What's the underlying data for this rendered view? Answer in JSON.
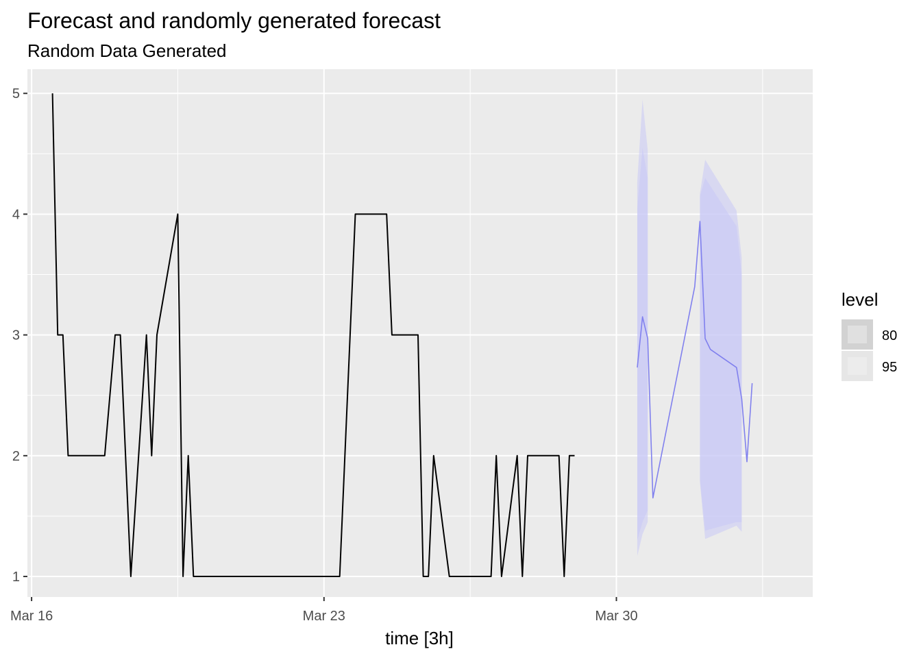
{
  "chart_data": {
    "type": "line",
    "title": "Forecast and randomly generated forecast",
    "subtitle": "Random Data Generated",
    "xlabel": "time [3h]",
    "ylabel": "",
    "x_ticks": [
      "Mar 16",
      "Mar 23",
      "Mar 30"
    ],
    "y_ticks": [
      1,
      2,
      3,
      4,
      5
    ],
    "xlim_days": [
      15.9,
      34.7
    ],
    "ylim": [
      0.83,
      5.2
    ],
    "grid": true,
    "legend": {
      "title": "level",
      "entries": [
        "80",
        "95"
      ],
      "placement": "right"
    },
    "colors": {
      "panel": "#ebebeb",
      "grid": "#ffffff",
      "history": "#000000",
      "forecast": "#8080ee",
      "band": "#c8c8f5"
    },
    "series": [
      {
        "role": "history",
        "points": [
          [
            "Mar 16 12:00",
            5
          ],
          [
            "Mar 16 15:00",
            3
          ],
          [
            "Mar 16 18:00",
            3
          ],
          [
            "Mar 16 21:00",
            2
          ],
          [
            "Mar 17 00:00",
            2
          ],
          [
            "Mar 17 03:00",
            2
          ],
          [
            "Mar 17 06:00",
            2
          ],
          [
            "Mar 17 09:00",
            2
          ],
          [
            "Mar 17 12:00",
            2
          ],
          [
            "Mar 17 15:00",
            2
          ],
          [
            "Mar 17 18:00",
            2
          ],
          [
            "Mar 17 21:00",
            2.5
          ],
          [
            "Mar 18 00:00",
            3
          ],
          [
            "Mar 18 03:00",
            3
          ],
          [
            "Mar 18 06:00",
            2
          ],
          [
            "Mar 18 09:00",
            1
          ],
          [
            "Mar 18 12:00",
            1.67
          ],
          [
            "Mar 18 15:00",
            2.33
          ],
          [
            "Mar 18 18:00",
            3
          ],
          [
            "Mar 18 21:00",
            2
          ],
          [
            "Mar 19 00:00",
            3
          ],
          [
            "Mar 19 03:00",
            3.25
          ],
          [
            "Mar 19 06:00",
            3.5
          ],
          [
            "Mar 19 09:00",
            3.75
          ],
          [
            "Mar 19 12:00",
            4
          ],
          [
            "Mar 19 15:00",
            1
          ],
          [
            "Mar 19 18:00",
            2
          ],
          [
            "Mar 19 21:00",
            1
          ],
          [
            "Mar 20 00:00",
            1
          ],
          [
            "Mar 20 03:00",
            1
          ],
          [
            "Mar 20 06:00",
            1
          ],
          [
            "Mar 20 09:00",
            1
          ],
          [
            "Mar 20 12:00",
            1
          ],
          [
            "Mar 20 15:00",
            1
          ],
          [
            "Mar 20 18:00",
            1
          ],
          [
            "Mar 20 21:00",
            1
          ],
          [
            "Mar 21 00:00",
            1
          ],
          [
            "Mar 21 03:00",
            1
          ],
          [
            "Mar 21 06:00",
            1
          ],
          [
            "Mar 21 09:00",
            1
          ],
          [
            "Mar 21 12:00",
            1
          ],
          [
            "Mar 21 15:00",
            1
          ],
          [
            "Mar 21 18:00",
            1
          ],
          [
            "Mar 21 21:00",
            1
          ],
          [
            "Mar 22 00:00",
            1
          ],
          [
            "Mar 22 03:00",
            1
          ],
          [
            "Mar 22 06:00",
            1
          ],
          [
            "Mar 22 09:00",
            1
          ],
          [
            "Mar 22 12:00",
            1
          ],
          [
            "Mar 22 15:00",
            1
          ],
          [
            "Mar 22 18:00",
            1
          ],
          [
            "Mar 22 21:00",
            1
          ],
          [
            "Mar 23 00:00",
            1
          ],
          [
            "Mar 23 03:00",
            1
          ],
          [
            "Mar 23 06:00",
            1
          ],
          [
            "Mar 23 09:00",
            1
          ],
          [
            "Mar 23 12:00",
            2
          ],
          [
            "Mar 23 15:00",
            3
          ],
          [
            "Mar 23 18:00",
            4
          ],
          [
            "Mar 23 21:00",
            4
          ],
          [
            "Mar 24 00:00",
            4
          ],
          [
            "Mar 24 03:00",
            4
          ],
          [
            "Mar 24 06:00",
            4
          ],
          [
            "Mar 24 09:00",
            4
          ],
          [
            "Mar 24 12:00",
            4
          ],
          [
            "Mar 24 15:00",
            3
          ],
          [
            "Mar 24 18:00",
            3
          ],
          [
            "Mar 24 21:00",
            3
          ],
          [
            "Mar 25 00:00",
            3
          ],
          [
            "Mar 25 03:00",
            3
          ],
          [
            "Mar 25 06:00",
            3
          ],
          [
            "Mar 25 09:00",
            1
          ],
          [
            "Mar 25 12:00",
            1
          ],
          [
            "Mar 25 15:00",
            2
          ],
          [
            "Mar 25 18:00",
            1.67
          ],
          [
            "Mar 25 21:00",
            1.33
          ],
          [
            "Mar 26 00:00",
            1
          ],
          [
            "Mar 26 03:00",
            1
          ],
          [
            "Mar 26 06:00",
            1
          ],
          [
            "Mar 26 09:00",
            1
          ],
          [
            "Mar 26 12:00",
            1
          ],
          [
            "Mar 26 15:00",
            1
          ],
          [
            "Mar 26 18:00",
            1
          ],
          [
            "Mar 26 21:00",
            1
          ],
          [
            "Mar 27 00:00",
            1
          ],
          [
            "Mar 27 03:00",
            2
          ],
          [
            "Mar 27 06:00",
            1
          ],
          [
            "Mar 27 09:00",
            1.33
          ],
          [
            "Mar 27 12:00",
            1.67
          ],
          [
            "Mar 27 15:00",
            2
          ],
          [
            "Mar 27 18:00",
            1
          ],
          [
            "Mar 27 21:00",
            2
          ],
          [
            "Mar 28 00:00",
            2
          ],
          [
            "Mar 28 03:00",
            2
          ],
          [
            "Mar 28 06:00",
            2
          ],
          [
            "Mar 28 09:00",
            2
          ],
          [
            "Mar 28 12:00",
            2
          ],
          [
            "Mar 28 15:00",
            2
          ],
          [
            "Mar 28 18:00",
            1
          ],
          [
            "Mar 28 21:00",
            2
          ],
          [
            "Mar 29 00:00",
            2
          ]
        ]
      },
      {
        "role": "forecast",
        "points": [
          [
            "Mar 30 12:00",
            2.73
          ],
          [
            "Mar 30 15:00",
            3.15
          ],
          [
            "Mar 30 18:00",
            2.97
          ],
          [
            "Mar 30 21:00",
            1.65
          ],
          [
            "Mar 31 21:00",
            3.4
          ],
          [
            "Apr 01 00:00",
            3.94
          ],
          [
            "Apr 01 03:00",
            2.97
          ],
          [
            "Apr 01 06:00",
            2.88
          ],
          [
            "Apr 01 21:00",
            2.73
          ],
          [
            "Apr 02 00:00",
            2.47
          ],
          [
            "Apr 02 03:00",
            1.95
          ],
          [
            "Apr 02 06:00",
            2.6
          ]
        ]
      }
    ],
    "intervals": [
      {
        "level": "80",
        "segments": [
          [
            [
              "Mar 30 12:00",
              1.3,
              4.05
            ],
            [
              "Mar 30 15:00",
              1.45,
              4.55
            ],
            [
              "Mar 30 18:00",
              1.55,
              4.3
            ]
          ],
          [
            [
              "Apr 01 00:00",
              1.8,
              4.15
            ],
            [
              "Apr 01 03:00",
              1.38,
              4.3
            ],
            [
              "Apr 01 21:00",
              1.45,
              3.9
            ],
            [
              "Apr 02 00:00",
              1.45,
              3.5
            ]
          ]
        ]
      },
      {
        "level": "95",
        "segments": [
          [
            [
              "Mar 30 12:00",
              1.17,
              4.27
            ],
            [
              "Mar 30 15:00",
              1.35,
              4.95
            ],
            [
              "Mar 30 18:00",
              1.45,
              4.53
            ]
          ],
          [
            [
              "Apr 01 00:00",
              1.78,
              4.17
            ],
            [
              "Apr 01 03:00",
              1.31,
              4.45
            ],
            [
              "Apr 01 21:00",
              1.42,
              4.03
            ],
            [
              "Apr 02 00:00",
              1.37,
              3.64
            ]
          ]
        ]
      }
    ]
  }
}
